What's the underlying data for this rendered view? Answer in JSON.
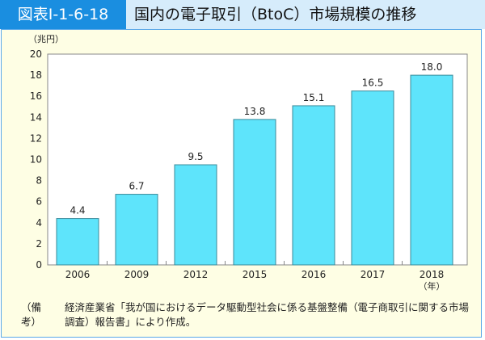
{
  "header": {
    "figure_number": "図表Ⅰ-1-6-18",
    "title": "国内の電子取引（BtoC）市場規模の推移"
  },
  "chart_data": {
    "type": "bar",
    "title": "国内の電子取引（BtoC）市場規模の推移",
    "ylabel": "（兆円）",
    "xlabel": "（年）",
    "categories": [
      "2006",
      "2009",
      "2012",
      "2015",
      "2016",
      "2017",
      "2018"
    ],
    "values": [
      4.4,
      6.7,
      9.5,
      13.8,
      15.1,
      16.5,
      18.0
    ],
    "data_labels": [
      "4.4",
      "6.7",
      "9.5",
      "13.8",
      "15.1",
      "16.5",
      "18.0"
    ],
    "ylim": [
      0,
      20
    ],
    "yticks": [
      "0",
      "2",
      "4",
      "6",
      "8",
      "10",
      "12",
      "14",
      "16",
      "18",
      "20"
    ],
    "grid": false,
    "bar_color": "#5ee4fb",
    "legend": "none"
  },
  "note": {
    "label": "（備考）",
    "text": "経済産業省「我が国におけるデータ駆動型社会に係る基盤整備（電子商取引に関する市場調査）報告書」により作成。"
  }
}
